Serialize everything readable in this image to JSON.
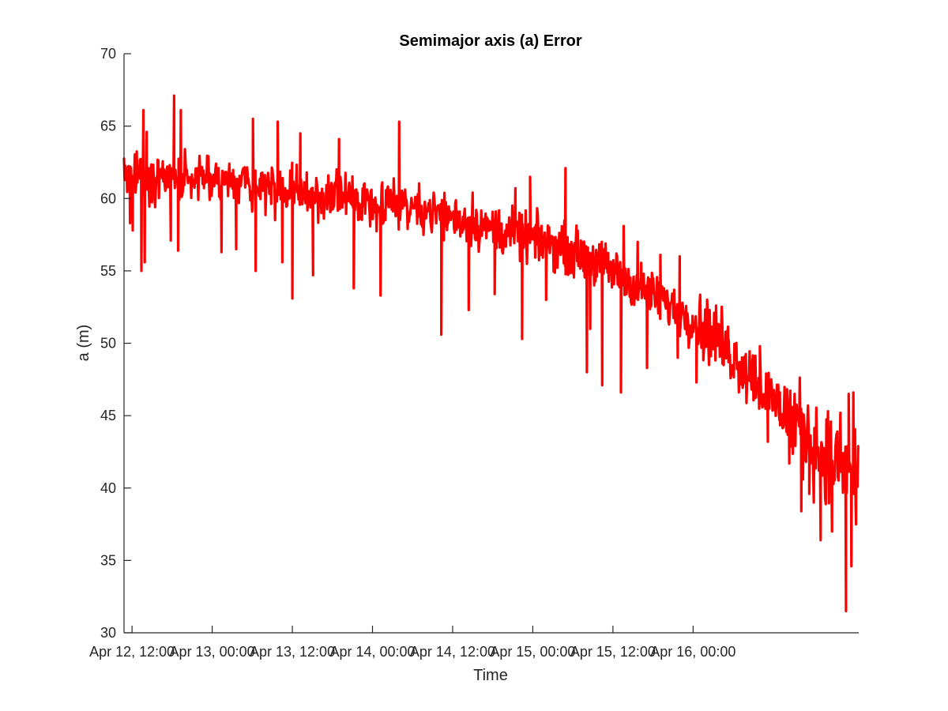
{
  "chart_data": {
    "type": "line",
    "title": "Semimajor axis (a) Error",
    "xlabel": "Time",
    "ylabel": "a (m)",
    "ylim": [
      30,
      70
    ],
    "yticks": [
      30,
      35,
      40,
      45,
      50,
      55,
      60,
      65,
      70
    ],
    "xlim_hours": [
      -1.2,
      108.8
    ],
    "x_ticks": [
      {
        "label": "Apr 12, 12:00",
        "hour": 0
      },
      {
        "label": "Apr 13, 00:00",
        "hour": 12
      },
      {
        "label": "Apr 13, 12:00",
        "hour": 24
      },
      {
        "label": "Apr 14, 00:00",
        "hour": 36
      },
      {
        "label": "Apr 14, 12:00",
        "hour": 48
      },
      {
        "label": "Apr 15, 00:00",
        "hour": 60
      },
      {
        "label": "Apr 15, 12:00",
        "hour": 72
      },
      {
        "label": "Apr 16, 00:00",
        "hour": 84
      }
    ],
    "grid": false,
    "series": [
      {
        "color": "#ff0000",
        "trend": [
          [
            -1.2,
            61.8
          ],
          [
            0,
            61.5
          ],
          [
            3,
            61.0
          ],
          [
            6,
            61.6
          ],
          [
            9,
            61.3
          ],
          [
            12,
            61.2
          ],
          [
            18,
            61.0
          ],
          [
            24,
            60.4
          ],
          [
            30,
            60.1
          ],
          [
            36,
            59.8
          ],
          [
            42,
            59.5
          ],
          [
            48,
            58.7
          ],
          [
            54,
            57.9
          ],
          [
            60,
            57.2
          ],
          [
            66,
            56.4
          ],
          [
            72,
            55.0
          ],
          [
            78,
            53.3
          ],
          [
            84,
            51.6
          ],
          [
            88,
            50.3
          ],
          [
            92,
            48.2
          ],
          [
            96,
            46.0
          ],
          [
            100,
            44.3
          ],
          [
            104,
            42.0
          ],
          [
            108.8,
            41.0
          ]
        ],
        "spikes": [
          [
            -0.3,
            58.3
          ],
          [
            0.1,
            57.8
          ],
          [
            1.4,
            55.0
          ],
          [
            1.7,
            66.1
          ],
          [
            1.9,
            55.6
          ],
          [
            2.2,
            64.6
          ],
          [
            6.3,
            67.1
          ],
          [
            6.9,
            56.4
          ],
          [
            7.3,
            66.1
          ],
          [
            5.8,
            57.1
          ],
          [
            13.4,
            56.3
          ],
          [
            15.6,
            56.5
          ],
          [
            18.1,
            65.5
          ],
          [
            18.5,
            55.0
          ],
          [
            21.8,
            65.3
          ],
          [
            22.5,
            55.6
          ],
          [
            24.0,
            53.1
          ],
          [
            25.2,
            64.5
          ],
          [
            27.1,
            54.7
          ],
          [
            31.0,
            64.1
          ],
          [
            33.2,
            53.8
          ],
          [
            37.2,
            53.3
          ],
          [
            40.0,
            65.3
          ],
          [
            46.3,
            50.6
          ],
          [
            50.4,
            52.3
          ],
          [
            51.0,
            60.4
          ],
          [
            54.3,
            53.4
          ],
          [
            57.4,
            60.7
          ],
          [
            58.4,
            50.3
          ],
          [
            59.6,
            61.5
          ],
          [
            62.0,
            53.0
          ],
          [
            63.4,
            55.6
          ],
          [
            64.9,
            62.1
          ],
          [
            68.1,
            48.0
          ],
          [
            68.6,
            51.0
          ],
          [
            70.4,
            47.1
          ],
          [
            73.2,
            46.6
          ],
          [
            73.6,
            58.1
          ],
          [
            75.7,
            57.0
          ],
          [
            77.1,
            48.3
          ],
          [
            79.1,
            56.1
          ],
          [
            81.7,
            49.0
          ],
          [
            82.0,
            56.0
          ],
          [
            84.5,
            47.3
          ],
          [
            85.5,
            51.4
          ],
          [
            88.4,
            48.6
          ],
          [
            89.1,
            49.5
          ],
          [
            89.3,
            48.7
          ],
          [
            94.0,
            49.8
          ],
          [
            95.2,
            43.2
          ],
          [
            97.0,
            46.6
          ],
          [
            98.4,
            41.7
          ],
          [
            99.2,
            46.5
          ],
          [
            100.2,
            38.4
          ],
          [
            101.4,
            39.6
          ],
          [
            103.1,
            36.4
          ],
          [
            104.2,
            45.3
          ],
          [
            104.8,
            37.0
          ],
          [
            105.6,
            43.9
          ],
          [
            106.9,
            31.5
          ],
          [
            107.3,
            46.5
          ],
          [
            107.7,
            34.6
          ],
          [
            108.0,
            46.6
          ],
          [
            108.4,
            37.5
          ]
        ]
      }
    ]
  }
}
